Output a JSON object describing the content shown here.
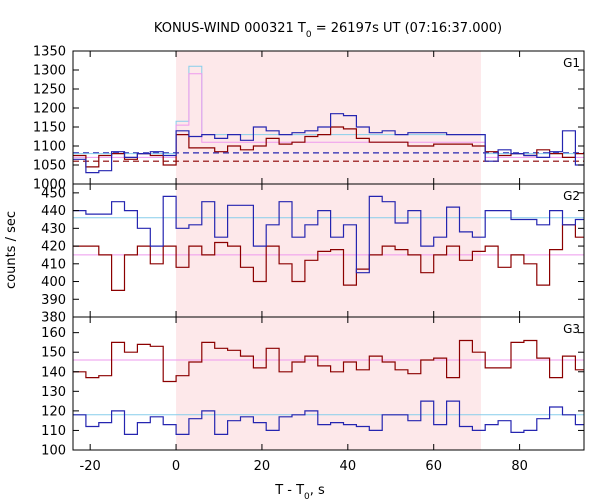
{
  "colors": {
    "shade": "#fde8ea",
    "red": "#8b0000",
    "blue": "#2525b0",
    "cyan": "#87ceeb",
    "pink": "#ee99ee",
    "frame": "#000000"
  },
  "chart_data": {
    "type": "line",
    "title_main": "KONUS-WIND 000321 T",
    "title_sub": "0",
    "title_rest": " = 26197s UT (07:16:37.000)",
    "xlabel_main": "T - T",
    "xlabel_sub": "0",
    "xlabel_rest": ", s",
    "ylabel": "counts / sec",
    "xlim": [
      -24,
      95
    ],
    "x_ticks": [
      -20,
      0,
      20,
      40,
      60,
      80
    ],
    "x_tick_labels": [
      "-20",
      "0",
      "20",
      "40",
      "60",
      "80"
    ],
    "shaded_interval": [
      0,
      71
    ],
    "bin_edges": [
      -24,
      -21,
      -18,
      -15,
      -12,
      -9,
      -6,
      -3,
      0,
      3,
      6,
      9,
      12,
      15,
      18,
      21,
      24,
      27,
      30,
      33,
      36,
      39,
      42,
      45,
      48,
      51,
      54,
      57,
      60,
      63,
      66,
      69,
      72,
      75,
      78,
      81,
      84,
      87,
      90,
      93,
      95
    ],
    "panels": [
      {
        "label": "G1",
        "ylim": [
          1000,
          1350
        ],
        "y_ticks": [
          1000,
          1050,
          1100,
          1150,
          1200,
          1250,
          1300,
          1350
        ],
        "y_tick_labels": [
          "1000",
          "1050",
          "1100",
          "1150",
          "1200",
          "1250",
          "1300",
          "1350"
        ],
        "series": [
          {
            "color": "red",
            "values": [
              1075,
              1045,
              1075,
              1080,
              1065,
              1080,
              1075,
              1050,
              1130,
              1095,
              1095,
              1085,
              1100,
              1090,
              1100,
              1120,
              1105,
              1110,
              1125,
              1130,
              1150,
              1145,
              1120,
              1110,
              1110,
              1110,
              1100,
              1100,
              1105,
              1105,
              1105,
              1100,
              1085,
              1075,
              1080,
              1075,
              1090,
              1080,
              1070,
              1080
            ]
          },
          {
            "color": "blue",
            "values": [
              1065,
              1030,
              1035,
              1085,
              1070,
              1080,
              1085,
              1075,
              1140,
              1125,
              1130,
              1120,
              1130,
              1115,
              1150,
              1140,
              1130,
              1135,
              1140,
              1150,
              1185,
              1180,
              1150,
              1135,
              1140,
              1130,
              1135,
              1135,
              1135,
              1130,
              1130,
              1130,
              1060,
              1090,
              1080,
              1075,
              1070,
              1085,
              1140,
              1050
            ]
          },
          {
            "color": "cyan",
            "values": [
              1080,
              1080,
              1080,
              1080,
              1080,
              1080,
              1080,
              1080,
              1165,
              1310,
              1130,
              1130,
              1130,
              1130,
              1130,
              1130,
              1130,
              1130,
              1130,
              1130,
              1130,
              1130,
              1130,
              1130,
              1130,
              1130,
              1130,
              1130,
              1130,
              1130,
              1130,
              1130,
              1080,
              1080,
              1080,
              1080,
              1080,
              1080,
              1080,
              1080
            ]
          },
          {
            "color": "pink",
            "values": [
              1070,
              1070,
              1070,
              1070,
              1070,
              1070,
              1070,
              1070,
              1155,
              1290,
              1110,
              1110,
              1110,
              1110,
              1110,
              1110,
              1110,
              1110,
              1110,
              1110,
              1110,
              1110,
              1110,
              1110,
              1110,
              1110,
              1110,
              1110,
              1110,
              1110,
              1110,
              1110,
              1070,
              1070,
              1070,
              1070,
              1070,
              1070,
              1070,
              1070
            ]
          }
        ],
        "dashed": [
          {
            "color": "red",
            "value": 1060
          },
          {
            "color": "blue",
            "value": 1082
          }
        ]
      },
      {
        "label": "G2",
        "ylim": [
          380,
          455
        ],
        "y_ticks": [
          380,
          390,
          400,
          410,
          420,
          430,
          440,
          450
        ],
        "y_tick_labels": [
          "380",
          "390",
          "400",
          "410",
          "420",
          "430",
          "440",
          "450"
        ],
        "series": [
          {
            "color": "red",
            "values": [
              420,
              420,
              415,
              395,
              415,
              420,
              410,
              420,
              408,
              420,
              415,
              422,
              420,
              408,
              400,
              420,
              410,
              400,
              412,
              417,
              418,
              398,
              407,
              415,
              420,
              418,
              415,
              405,
              415,
              420,
              412,
              417,
              420,
              408,
              415,
              410,
              398,
              418,
              432,
              425
            ]
          },
          {
            "color": "blue",
            "values": [
              440,
              438,
              438,
              445,
              440,
              430,
              420,
              448,
              430,
              432,
              445,
              425,
              443,
              443,
              420,
              432,
              445,
              425,
              432,
              440,
              425,
              432,
              405,
              448,
              445,
              433,
              440,
              420,
              425,
              442,
              428,
              425,
              440,
              440,
              435,
              435,
              432,
              440,
              432,
              435
            ]
          },
          {
            "color": "cyan",
            "values": [
              436,
              436,
              436,
              436,
              436,
              436,
              436,
              436,
              436,
              436,
              436,
              436,
              436,
              436,
              436,
              436,
              436,
              436,
              436,
              436,
              436,
              436,
              436,
              436,
              436,
              436,
              436,
              436,
              436,
              436,
              436,
              436,
              436,
              436,
              436,
              436,
              436,
              436,
              436,
              436
            ]
          },
          {
            "color": "pink",
            "values": [
              415,
              415,
              415,
              415,
              415,
              415,
              415,
              415,
              415,
              415,
              415,
              415,
              415,
              415,
              415,
              415,
              415,
              415,
              415,
              415,
              415,
              415,
              415,
              415,
              415,
              415,
              415,
              415,
              415,
              415,
              415,
              415,
              415,
              415,
              415,
              415,
              415,
              415,
              415,
              415
            ]
          }
        ],
        "dashed": []
      },
      {
        "label": "G3",
        "ylim": [
          100,
          168
        ],
        "y_ticks": [
          100,
          110,
          120,
          130,
          140,
          150,
          160
        ],
        "y_tick_labels": [
          "100",
          "110",
          "120",
          "130",
          "140",
          "150",
          "160"
        ],
        "series": [
          {
            "color": "red",
            "values": [
              140,
              137,
              138,
              155,
              150,
              154,
              153,
              135,
              138,
              145,
              155,
              152,
              151,
              148,
              142,
              152,
              140,
              145,
              148,
              143,
              140,
              145,
              141,
              148,
              145,
              141,
              139,
              146,
              147,
              137,
              156,
              150,
              142,
              142,
              155,
              156,
              147,
              137,
              148,
              141
            ]
          },
          {
            "color": "blue",
            "values": [
              118,
              112,
              114,
              120,
              108,
              114,
              117,
              113,
              108,
              116,
              120,
              108,
              115,
              117,
              114,
              110,
              117,
              118,
              120,
              113,
              114,
              113,
              112,
              110,
              118,
              118,
              115,
              125,
              113,
              125,
              112,
              110,
              113,
              115,
              109,
              110,
              116,
              122,
              118,
              113
            ]
          },
          {
            "color": "cyan",
            "values": [
              118,
              118,
              118,
              118,
              118,
              118,
              118,
              118,
              118,
              118,
              118,
              118,
              118,
              118,
              118,
              118,
              118,
              118,
              118,
              118,
              118,
              118,
              118,
              118,
              118,
              118,
              118,
              118,
              118,
              118,
              118,
              118,
              118,
              118,
              118,
              118,
              118,
              118,
              118,
              118
            ]
          },
          {
            "color": "pink",
            "values": [
              146,
              146,
              146,
              146,
              146,
              146,
              146,
              146,
              146,
              146,
              146,
              146,
              146,
              146,
              146,
              146,
              146,
              146,
              146,
              146,
              146,
              146,
              146,
              146,
              146,
              146,
              146,
              146,
              146,
              146,
              146,
              146,
              146,
              146,
              146,
              146,
              146,
              146,
              146,
              146
            ]
          }
        ],
        "dashed": []
      }
    ]
  }
}
